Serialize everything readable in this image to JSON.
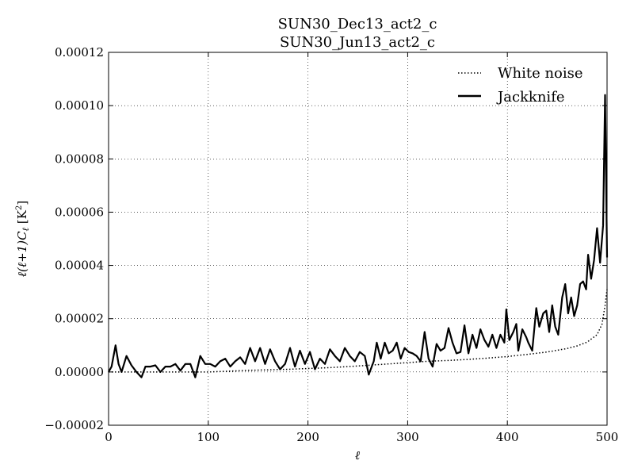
{
  "chart_data": {
    "type": "line",
    "title_lines": [
      "SUN30_Dec13_act2_c",
      "SUN30_Jun13_act2_c"
    ],
    "xlabel": "ℓ",
    "ylabel_parts": [
      "ℓ(ℓ+1)",
      "C",
      "ℓ",
      " [K",
      "2",
      "]"
    ],
    "xlim": [
      0,
      500
    ],
    "ylim": [
      -2e-05,
      0.00012
    ],
    "x_ticks": [
      0,
      100,
      200,
      300,
      400,
      500
    ],
    "x_tick_labels": [
      "0",
      "100",
      "200",
      "300",
      "400",
      "500"
    ],
    "y_ticks": [
      -2e-05,
      0,
      2e-05,
      4e-05,
      6e-05,
      8e-05,
      0.0001,
      0.00012
    ],
    "y_tick_labels": [
      "−0.00002",
      "0.00000",
      "0.00002",
      "0.00004",
      "0.00006",
      "0.00008",
      "0.00010",
      "0.00012"
    ],
    "grid": true,
    "legend_position": "top-right",
    "series": [
      {
        "name": "White noise",
        "style": "dotted",
        "color": "#000000",
        "points": [
          [
            0,
            0
          ],
          [
            20,
            0
          ],
          [
            40,
            0
          ],
          [
            60,
            0
          ],
          [
            80,
            0
          ],
          [
            100,
            0
          ],
          [
            120,
            3e-07
          ],
          [
            140,
            6e-07
          ],
          [
            160,
            8e-07
          ],
          [
            180,
            1e-06
          ],
          [
            200,
            1.3e-06
          ],
          [
            220,
            1.6e-06
          ],
          [
            240,
            2e-06
          ],
          [
            260,
            2.5e-06
          ],
          [
            280,
            3e-06
          ],
          [
            300,
            3.5e-06
          ],
          [
            320,
            4e-06
          ],
          [
            340,
            4.3e-06
          ],
          [
            360,
            4.7e-06
          ],
          [
            380,
            5.2e-06
          ],
          [
            400,
            5.8e-06
          ],
          [
            420,
            6.6e-06
          ],
          [
            440,
            7.5e-06
          ],
          [
            460,
            8.8e-06
          ],
          [
            470,
            9.8e-06
          ],
          [
            480,
            1.12e-05
          ],
          [
            490,
            1.4e-05
          ],
          [
            495,
            1.8e-05
          ],
          [
            498,
            2.5e-05
          ],
          [
            500,
            3.1e-05
          ]
        ]
      },
      {
        "name": "Jackknife",
        "style": "solid",
        "color": "#000000",
        "points": [
          [
            0,
            0
          ],
          [
            3,
            2e-06
          ],
          [
            7,
            1e-05
          ],
          [
            10,
            3e-06
          ],
          [
            13,
            0
          ],
          [
            18,
            6e-06
          ],
          [
            23,
            2.5e-06
          ],
          [
            28,
            0
          ],
          [
            33,
            -2e-06
          ],
          [
            37,
            2e-06
          ],
          [
            42,
            2e-06
          ],
          [
            47,
            2.5e-06
          ],
          [
            52,
            0
          ],
          [
            57,
            2e-06
          ],
          [
            62,
            2e-06
          ],
          [
            67,
            3e-06
          ],
          [
            72,
            5e-07
          ],
          [
            77,
            3e-06
          ],
          [
            82,
            3e-06
          ],
          [
            87,
            -2e-06
          ],
          [
            92,
            6e-06
          ],
          [
            97,
            3e-06
          ],
          [
            102,
            3e-06
          ],
          [
            107,
            2e-06
          ],
          [
            112,
            4e-06
          ],
          [
            117,
            5e-06
          ],
          [
            122,
            2e-06
          ],
          [
            127,
            4e-06
          ],
          [
            132,
            5.5e-06
          ],
          [
            137,
            3e-06
          ],
          [
            142,
            9e-06
          ],
          [
            147,
            4e-06
          ],
          [
            152,
            9e-06
          ],
          [
            157,
            3e-06
          ],
          [
            162,
            8.5e-06
          ],
          [
            167,
            4e-06
          ],
          [
            172,
            1e-06
          ],
          [
            177,
            3e-06
          ],
          [
            182,
            9e-06
          ],
          [
            187,
            2e-06
          ],
          [
            192,
            8e-06
          ],
          [
            197,
            3e-06
          ],
          [
            202,
            7.5e-06
          ],
          [
            207,
            1e-06
          ],
          [
            212,
            5e-06
          ],
          [
            217,
            3e-06
          ],
          [
            222,
            8.5e-06
          ],
          [
            227,
            6e-06
          ],
          [
            232,
            4e-06
          ],
          [
            237,
            9e-06
          ],
          [
            242,
            6e-06
          ],
          [
            247,
            4e-06
          ],
          [
            252,
            7.5e-06
          ],
          [
            257,
            6e-06
          ],
          [
            261,
            -1e-06
          ],
          [
            266,
            4e-06
          ],
          [
            269,
            1.1e-05
          ],
          [
            273,
            5e-06
          ],
          [
            277,
            1.1e-05
          ],
          [
            281,
            7e-06
          ],
          [
            285,
            8e-06
          ],
          [
            289,
            1.1e-05
          ],
          [
            293,
            5e-06
          ],
          [
            297,
            9e-06
          ],
          [
            301,
            7.5e-06
          ],
          [
            305,
            7e-06
          ],
          [
            309,
            6e-06
          ],
          [
            313,
            4e-06
          ],
          [
            317,
            1.5e-05
          ],
          [
            321,
            5e-06
          ],
          [
            325,
            2e-06
          ],
          [
            329,
            1.05e-05
          ],
          [
            333,
            8e-06
          ],
          [
            337,
            9e-06
          ],
          [
            341,
            1.65e-05
          ],
          [
            345,
            1.1e-05
          ],
          [
            349,
            7e-06
          ],
          [
            353,
            7.5e-06
          ],
          [
            357,
            1.75e-05
          ],
          [
            361,
            7e-06
          ],
          [
            365,
            1.4e-05
          ],
          [
            369,
            9e-06
          ],
          [
            373,
            1.6e-05
          ],
          [
            377,
            1.2e-05
          ],
          [
            381,
            9.5e-06
          ],
          [
            385,
            1.4e-05
          ],
          [
            389,
            9e-06
          ],
          [
            393,
            1.4e-05
          ],
          [
            397,
            1.1e-05
          ],
          [
            399,
            2.35e-05
          ],
          [
            402,
            1.2e-05
          ],
          [
            406,
            1.5e-05
          ],
          [
            409,
            1.8e-05
          ],
          [
            411,
            8e-06
          ],
          [
            415,
            1.6e-05
          ],
          [
            419,
            1.3e-05
          ],
          [
            421,
            1.1e-05
          ],
          [
            425,
            8e-06
          ],
          [
            429,
            2.4e-05
          ],
          [
            432,
            1.7e-05
          ],
          [
            436,
            2.2e-05
          ],
          [
            439,
            2.3e-05
          ],
          [
            442,
            1.5e-05
          ],
          [
            445,
            2.5e-05
          ],
          [
            448,
            1.7e-05
          ],
          [
            451,
            1.4e-05
          ],
          [
            455,
            2.8e-05
          ],
          [
            458,
            3.3e-05
          ],
          [
            461,
            2.2e-05
          ],
          [
            464,
            2.8e-05
          ],
          [
            467,
            2.1e-05
          ],
          [
            470,
            2.5e-05
          ],
          [
            473,
            3.3e-05
          ],
          [
            476,
            3.4e-05
          ],
          [
            479,
            3.1e-05
          ],
          [
            481,
            4.4e-05
          ],
          [
            484,
            3.5e-05
          ],
          [
            487,
            4.2e-05
          ],
          [
            490,
            5.4e-05
          ],
          [
            493,
            4.1e-05
          ],
          [
            496,
            5.5e-05
          ],
          [
            498,
            0.000104
          ],
          [
            500,
            4.3e-05
          ]
        ]
      }
    ]
  }
}
